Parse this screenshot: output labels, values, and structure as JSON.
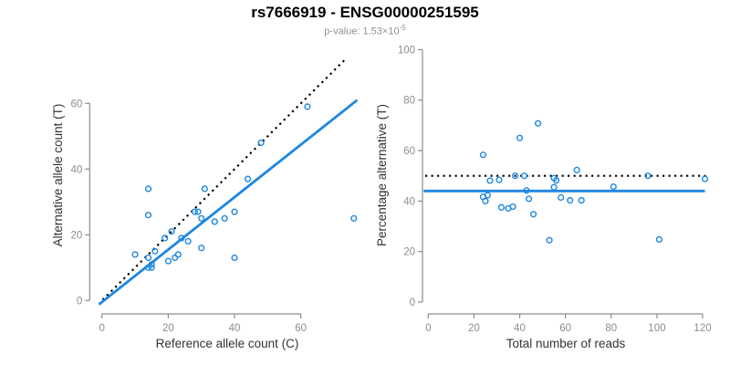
{
  "header": {
    "title": "rs7666919 - ENSG00000251595",
    "subtitle_main": "p-value: 1.53×10",
    "subtitle_exp": "-5"
  },
  "colors": {
    "accent_blue": "#1E87E0",
    "axis_gray": "#8C8C8C",
    "tick_label_gray": "#8C8C8C",
    "axis_title_dark": "#333333",
    "dotted_black": "#000000",
    "background": "#FFFFFF"
  },
  "chart_data": [
    {
      "name": "allele-counts-scatter",
      "type": "scatter",
      "title": "",
      "xlabel": "Reference allele count (C)",
      "ylabel": "Alternative allele count (T)",
      "xticks": [
        0,
        20,
        40,
        60
      ],
      "yticks": [
        0,
        20,
        40,
        60
      ],
      "xlim": [
        -3,
        77.5
      ],
      "ylim": [
        -4,
        76.5
      ],
      "grid": false,
      "legend": "none",
      "marker": "open-circle",
      "points": [
        [
          14,
          34
        ],
        [
          31,
          34
        ],
        [
          14,
          26
        ],
        [
          10,
          14
        ],
        [
          19,
          19
        ],
        [
          21,
          21
        ],
        [
          48,
          48
        ],
        [
          62,
          59
        ],
        [
          28,
          27
        ],
        [
          29,
          27
        ],
        [
          14,
          13
        ],
        [
          16,
          15
        ],
        [
          44,
          37
        ],
        [
          30,
          25
        ],
        [
          24,
          19
        ],
        [
          26,
          18
        ],
        [
          34,
          24
        ],
        [
          37,
          25
        ],
        [
          40,
          27
        ],
        [
          14,
          10
        ],
        [
          15,
          10
        ],
        [
          15,
          11
        ],
        [
          20,
          12
        ],
        [
          22,
          13
        ],
        [
          23,
          14
        ],
        [
          30,
          16
        ],
        [
          40,
          13
        ],
        [
          76,
          25
        ]
      ],
      "lines": [
        {
          "name": "identity-line",
          "style": "dotted",
          "color": "dotted_black",
          "points": [
            [
              0.2,
              0.2
            ],
            [
              73.8,
              73.8
            ]
          ]
        },
        {
          "name": "regression-line",
          "style": "solid",
          "color": "accent_blue",
          "points": [
            [
              -0.9,
              -1.2
            ],
            [
              77,
              61
            ]
          ]
        }
      ]
    },
    {
      "name": "percentage-vs-reads-scatter",
      "type": "scatter",
      "title": "",
      "xlabel": "Total number of reads",
      "ylabel": "Percentage alternative (T)",
      "xticks": [
        0,
        20,
        40,
        60,
        80,
        100,
        120
      ],
      "yticks": [
        0,
        20,
        40,
        60,
        80,
        100
      ],
      "xlim": [
        -3,
        123
      ],
      "ylim": [
        -5,
        105
      ],
      "grid": false,
      "legend": "none",
      "marker": "open-circle",
      "points": [
        [
          48,
          70.8
        ],
        [
          65,
          52.3
        ],
        [
          40,
          65.0
        ],
        [
          24,
          58.3
        ],
        [
          38,
          50.0
        ],
        [
          42,
          50.0
        ],
        [
          96,
          50.0
        ],
        [
          121,
          48.8
        ],
        [
          55,
          49.1
        ],
        [
          56,
          48.2
        ],
        [
          27,
          48.1
        ],
        [
          31,
          48.4
        ],
        [
          81,
          45.7
        ],
        [
          55,
          45.5
        ],
        [
          43,
          44.2
        ],
        [
          44,
          40.9
        ],
        [
          58,
          41.4
        ],
        [
          62,
          40.3
        ],
        [
          67,
          40.3
        ],
        [
          24,
          41.7
        ],
        [
          25,
          40.0
        ],
        [
          26,
          42.3
        ],
        [
          32,
          37.5
        ],
        [
          35,
          37.1
        ],
        [
          37,
          37.8
        ],
        [
          46,
          34.8
        ],
        [
          53,
          24.5
        ],
        [
          101,
          24.8
        ]
      ],
      "lines": [
        {
          "name": "expected-50pct-line",
          "style": "dotted",
          "color": "dotted_black",
          "points": [
            [
              -1.3,
              50
            ],
            [
              122,
              50
            ]
          ]
        },
        {
          "name": "mean-percentage-line",
          "style": "solid",
          "color": "accent_blue",
          "points": [
            [
              -2,
              44
            ],
            [
              121,
              44
            ]
          ]
        }
      ]
    }
  ]
}
